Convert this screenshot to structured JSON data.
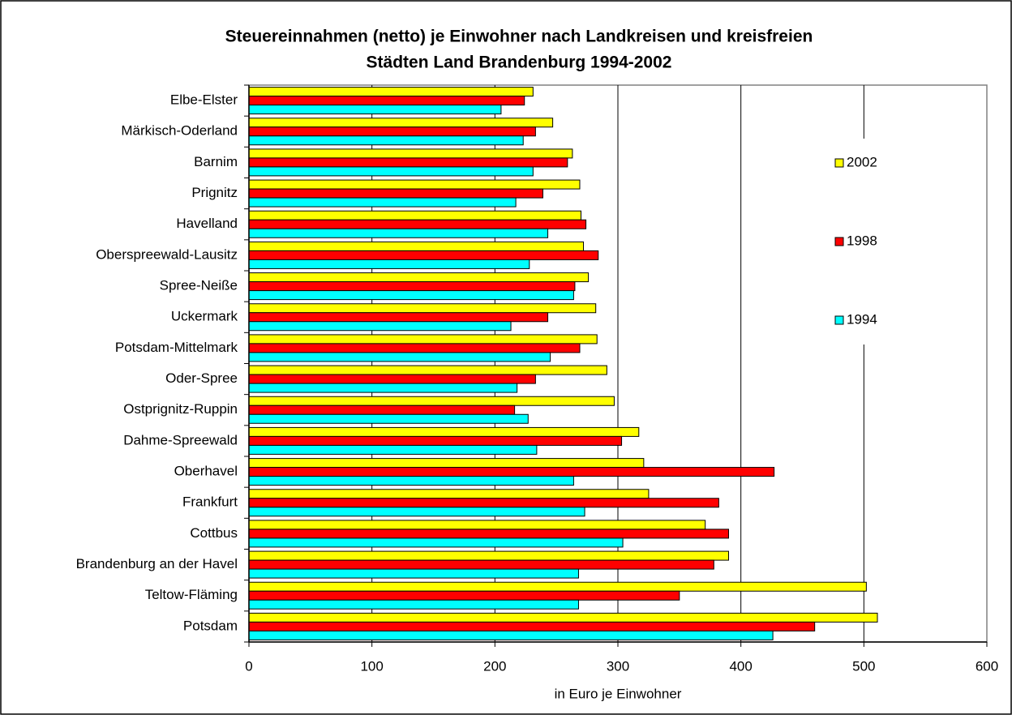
{
  "chart_data": {
    "type": "hbar",
    "title": "Steuereinnahmen (netto) je Einwohner nach Landkreisen und kreisfreien",
    "subtitle": "Städten Land Brandenburg 1994-2002",
    "xlabel": "in Euro je Einwohner",
    "categories": [
      "Elbe-Elster",
      "Märkisch-Oderland",
      "Barnim",
      "Prignitz",
      "Havelland",
      "Oberspreewald-Lausitz",
      "Spree-Neiße",
      "Uckermark",
      "Potsdam-Mittelmark",
      "Oder-Spree",
      "Ostprignitz-Ruppin",
      "Dahme-Spreewald",
      "Oberhavel",
      "Frankfurt",
      "Cottbus",
      "Brandenburg an der Havel",
      "Teltow-Fläming",
      "Potsdam"
    ],
    "series": [
      {
        "name": "2002",
        "color": "#ffff00",
        "values": [
          231,
          247,
          263,
          269,
          270,
          272,
          276,
          282,
          283,
          291,
          297,
          317,
          321,
          325,
          371,
          390,
          502,
          511
        ]
      },
      {
        "name": "1998",
        "color": "#ff0000",
        "values": [
          224,
          233,
          259,
          239,
          274,
          284,
          265,
          243,
          269,
          233,
          216,
          303,
          427,
          382,
          390,
          378,
          350,
          460
        ]
      },
      {
        "name": "1994",
        "color": "#00ffff",
        "values": [
          205,
          223,
          231,
          217,
          243,
          228,
          264,
          213,
          245,
          218,
          227,
          234,
          264,
          273,
          304,
          268,
          268,
          426
        ]
      }
    ],
    "xlim": [
      0,
      600
    ],
    "xticks": [
      0,
      100,
      200,
      300,
      400,
      500,
      600
    ],
    "grid": true,
    "legend": "right"
  }
}
